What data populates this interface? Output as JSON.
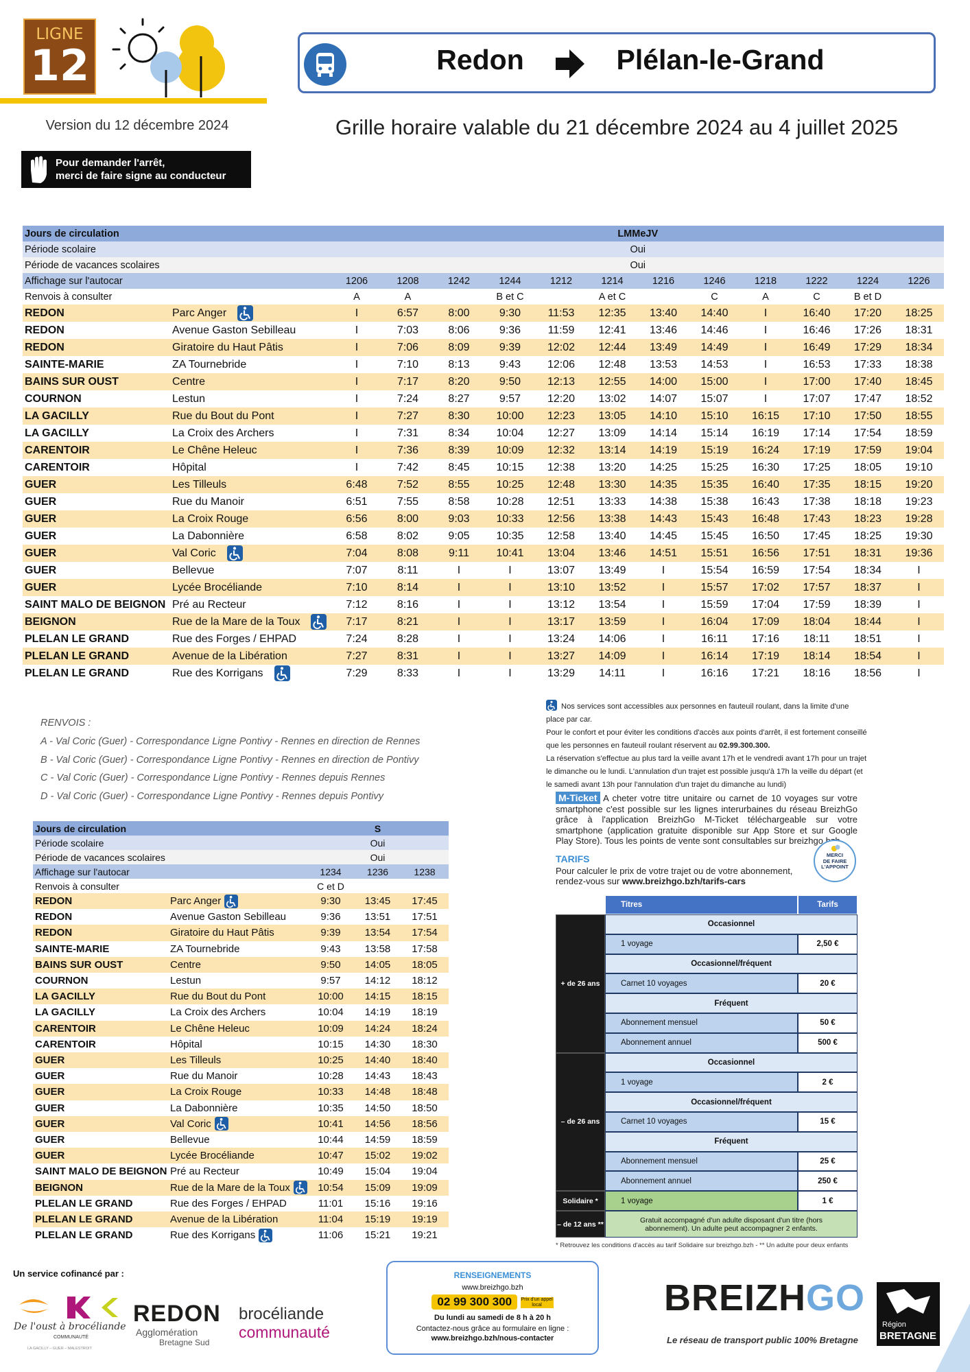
{
  "header": {
    "line_label": "LIGNE",
    "line_number": "12",
    "version": "Version du 12 décembre 2024",
    "stop_request_1": "Pour demander l'arrêt,",
    "stop_request_2": "merci de faire signe au conducteur",
    "origin": "Redon",
    "destination": "Plélan-le-Grand",
    "validity": "Grille horaire valable du 21 décembre 2024 au 4 juillet 2025"
  },
  "labels": {
    "days": "Jours de circulation",
    "school": "Période scolaire",
    "holidays": "Période de vacances scolaires",
    "display": "Affichage sur l'autocar",
    "notes": "Renvois à consulter"
  },
  "stops": [
    {
      "commune": "REDON",
      "name": "Parc Anger",
      "accessible": true
    },
    {
      "commune": "REDON",
      "name": "Avenue Gaston Sebilleau"
    },
    {
      "commune": "REDON",
      "name": "Giratoire du Haut Pâtis"
    },
    {
      "commune": "SAINTE-MARIE",
      "name": "ZA Tournebride"
    },
    {
      "commune": "BAINS SUR OUST",
      "name": "Centre"
    },
    {
      "commune": "COURNON",
      "name": "Lestun"
    },
    {
      "commune": "LA GACILLY",
      "name": "Rue du Bout du Pont"
    },
    {
      "commune": "LA GACILLY",
      "name": "La Croix des Archers"
    },
    {
      "commune": "CARENTOIR",
      "name": "Le Chêne Heleuc"
    },
    {
      "commune": "CARENTOIR",
      "name": "Hôpital"
    },
    {
      "commune": "GUER",
      "name": "Les Tilleuls"
    },
    {
      "commune": "GUER",
      "name": "Rue du Manoir"
    },
    {
      "commune": "GUER",
      "name": "La Croix Rouge"
    },
    {
      "commune": "GUER",
      "name": "La Dabonnière"
    },
    {
      "commune": "GUER",
      "name": "Val Coric",
      "accessible": true
    },
    {
      "commune": "GUER",
      "name": "Bellevue"
    },
    {
      "commune": "GUER",
      "name": "Lycée Brocéliande"
    },
    {
      "commune": "SAINT MALO DE BEIGNON",
      "name": "Pré au Recteur"
    },
    {
      "commune": "BEIGNON",
      "name": "Rue de la Mare de la Toux",
      "accessible": true
    },
    {
      "commune": "PLELAN LE GRAND",
      "name": "Rue des Forges / EHPAD"
    },
    {
      "commune": "PLELAN LE GRAND",
      "name": "Avenue de la Libération"
    },
    {
      "commune": "PLELAN LE GRAND",
      "name": "Rue des Korrigans",
      "accessible": true
    }
  ],
  "tables": [
    {
      "days": "LMMeJV",
      "school": "Oui",
      "holidays": "Oui",
      "trips": [
        "1206",
        "1208",
        "1242",
        "1244",
        "1212",
        "1214",
        "1216",
        "1246",
        "1218",
        "1222",
        "1224",
        "1226"
      ],
      "notes": [
        "A",
        "A",
        null,
        "B et C",
        null,
        "A et C",
        null,
        "C",
        "A",
        "C",
        "B et D",
        null
      ],
      "times": [
        [
          "I",
          "6:57",
          "8:00",
          "9:30",
          "11:53",
          "12:35",
          "13:40",
          "14:40",
          "I",
          "16:40",
          "17:20",
          "18:25"
        ],
        [
          "I",
          "7:03",
          "8:06",
          "9:36",
          "11:59",
          "12:41",
          "13:46",
          "14:46",
          "I",
          "16:46",
          "17:26",
          "18:31"
        ],
        [
          "I",
          "7:06",
          "8:09",
          "9:39",
          "12:02",
          "12:44",
          "13:49",
          "14:49",
          "I",
          "16:49",
          "17:29",
          "18:34"
        ],
        [
          "I",
          "7:10",
          "8:13",
          "9:43",
          "12:06",
          "12:48",
          "13:53",
          "14:53",
          "I",
          "16:53",
          "17:33",
          "18:38"
        ],
        [
          "I",
          "7:17",
          "8:20",
          "9:50",
          "12:13",
          "12:55",
          "14:00",
          "15:00",
          "I",
          "17:00",
          "17:40",
          "18:45"
        ],
        [
          "I",
          "7:24",
          "8:27",
          "9:57",
          "12:20",
          "13:02",
          "14:07",
          "15:07",
          "I",
          "17:07",
          "17:47",
          "18:52"
        ],
        [
          "I",
          "7:27",
          "8:30",
          "10:00",
          "12:23",
          "13:05",
          "14:10",
          "15:10",
          "16:15",
          "17:10",
          "17:50",
          "18:55"
        ],
        [
          "I",
          "7:31",
          "8:34",
          "10:04",
          "12:27",
          "13:09",
          "14:14",
          "15:14",
          "16:19",
          "17:14",
          "17:54",
          "18:59"
        ],
        [
          "I",
          "7:36",
          "8:39",
          "10:09",
          "12:32",
          "13:14",
          "14:19",
          "15:19",
          "16:24",
          "17:19",
          "17:59",
          "19:04"
        ],
        [
          "I",
          "7:42",
          "8:45",
          "10:15",
          "12:38",
          "13:20",
          "14:25",
          "15:25",
          "16:30",
          "17:25",
          "18:05",
          "19:10"
        ],
        [
          "6:48",
          "7:52",
          "8:55",
          "10:25",
          "12:48",
          "13:30",
          "14:35",
          "15:35",
          "16:40",
          "17:35",
          "18:15",
          "19:20"
        ],
        [
          "6:51",
          "7:55",
          "8:58",
          "10:28",
          "12:51",
          "13:33",
          "14:38",
          "15:38",
          "16:43",
          "17:38",
          "18:18",
          "19:23"
        ],
        [
          "6:56",
          "8:00",
          "9:03",
          "10:33",
          "12:56",
          "13:38",
          "14:43",
          "15:43",
          "16:48",
          "17:43",
          "18:23",
          "19:28"
        ],
        [
          "6:58",
          "8:02",
          "9:05",
          "10:35",
          "12:58",
          "13:40",
          "14:45",
          "15:45",
          "16:50",
          "17:45",
          "18:25",
          "19:30"
        ],
        [
          "7:04",
          "8:08",
          "9:11",
          "10:41",
          "13:04",
          "13:46",
          "14:51",
          "15:51",
          "16:56",
          "17:51",
          "18:31",
          "19:36"
        ],
        [
          "7:07",
          "8:11",
          "I",
          "I",
          "13:07",
          "13:49",
          "I",
          "15:54",
          "16:59",
          "17:54",
          "18:34",
          "I"
        ],
        [
          "7:10",
          "8:14",
          "I",
          "I",
          "13:10",
          "13:52",
          "I",
          "15:57",
          "17:02",
          "17:57",
          "18:37",
          "I"
        ],
        [
          "7:12",
          "8:16",
          "I",
          "I",
          "13:12",
          "13:54",
          "I",
          "15:59",
          "17:04",
          "17:59",
          "18:39",
          "I"
        ],
        [
          "7:17",
          "8:21",
          "I",
          "I",
          "13:17",
          "13:59",
          "I",
          "16:04",
          "17:09",
          "18:04",
          "18:44",
          "I"
        ],
        [
          "7:24",
          "8:28",
          "I",
          "I",
          "13:24",
          "14:06",
          "I",
          "16:11",
          "17:16",
          "18:11",
          "18:51",
          "I"
        ],
        [
          "7:27",
          "8:31",
          "I",
          "I",
          "13:27",
          "14:09",
          "I",
          "16:14",
          "17:19",
          "18:14",
          "18:54",
          "I"
        ],
        [
          "7:29",
          "8:33",
          "I",
          "I",
          "13:29",
          "14:11",
          "I",
          "16:16",
          "17:21",
          "18:16",
          "18:56",
          "I"
        ]
      ]
    },
    {
      "days": "S",
      "school": "Oui",
      "holidays": "Oui",
      "trips": [
        "1234",
        "1236",
        "1238"
      ],
      "notes": [
        "C et D",
        null,
        null
      ],
      "times": [
        [
          "9:30",
          "13:45",
          "17:45"
        ],
        [
          "9:36",
          "13:51",
          "17:51"
        ],
        [
          "9:39",
          "13:54",
          "17:54"
        ],
        [
          "9:43",
          "13:58",
          "17:58"
        ],
        [
          "9:50",
          "14:05",
          "18:05"
        ],
        [
          "9:57",
          "14:12",
          "18:12"
        ],
        [
          "10:00",
          "14:15",
          "18:15"
        ],
        [
          "10:04",
          "14:19",
          "18:19"
        ],
        [
          "10:09",
          "14:24",
          "18:24"
        ],
        [
          "10:15",
          "14:30",
          "18:30"
        ],
        [
          "10:25",
          "14:40",
          "18:40"
        ],
        [
          "10:28",
          "14:43",
          "18:43"
        ],
        [
          "10:33",
          "14:48",
          "18:48"
        ],
        [
          "10:35",
          "14:50",
          "18:50"
        ],
        [
          "10:41",
          "14:56",
          "18:56"
        ],
        [
          "10:44",
          "14:59",
          "18:59"
        ],
        [
          "10:47",
          "15:02",
          "19:02"
        ],
        [
          "10:49",
          "15:04",
          "19:04"
        ],
        [
          "10:54",
          "15:09",
          "19:09"
        ],
        [
          "11:01",
          "15:16",
          "19:16"
        ],
        [
          "11:04",
          "15:19",
          "19:19"
        ],
        [
          "11:06",
          "15:21",
          "19:21"
        ]
      ]
    }
  ],
  "renvois": {
    "title": "RENVOIS :",
    "items": [
      "A - Val Coric (Guer) - Correspondance Ligne Pontivy - Rennes en direction de Rennes",
      "B - Val Coric (Guer) - Correspondance Ligne Pontivy - Rennes en direction de Pontivy",
      "C - Val Coric (Guer) - Correspondance Ligne Pontivy - Rennes depuis Rennes",
      "D -  Val Coric (Guer) - Correspondance Ligne Pontivy - Rennes depuis Pontivy"
    ]
  },
  "accessibility": {
    "intro": "Nos services sont accessibles aux personnes en fauteuil roulant, dans la limite d'une place par car.",
    "advice": "Pour le confort et pour éviter les conditions d'accès aux points d'arrêt, il est  fortement conseillé que les personnes en fauteuil roulant réservent au",
    "phone": "02.99.300.300.",
    "booking": "La réservation s'effectue au plus tard la veille avant 17h et le vendredi avant 17h pour un trajet le dimanche ou le lundi. L'annulation d'un trajet est possible jusqu'à 17h la veille du départ (et le samedi avant 13h pour l'annulation d'un trajet du dimanche au lundi)"
  },
  "mticket": {
    "badge": "M-Ticket",
    "text": "A cheter votre titre unitaire ou carnet de 10 voyages sur votre smartphone c'est possible sur les lignes interurbaines du réseau BreizhGo grâce à l'application BreizhGo M-Ticket téléchargeable sur votre smartphone (application gratuite disponible sur App Store et sur Google Play Store). Tous les points de vente sont consultables sur breizhgo.bzh",
    "appoint": [
      "MERCI",
      "DE FAIRE",
      "L'APPOINT"
    ],
    "tarifs_title": "TARIFS",
    "tarifs_text": "Pour calculer le prix de votre trajet ou de votre abonnement, rendez-vous sur",
    "tarifs_url": "www.breizhgo.bzh/tarifs-cars"
  },
  "tariffs": {
    "headers": [
      "Titres",
      "Tarifs"
    ],
    "groups": [
      {
        "name": "+ de 26 ans",
        "sections": [
          {
            "title": "Occasionnel",
            "items": [
              {
                "label": "1 voyage",
                "price": "2,50 €"
              }
            ]
          },
          {
            "title": "Occasionnel/fréquent",
            "items": [
              {
                "label": "Carnet 10 voyages",
                "price": "20 €"
              }
            ]
          },
          {
            "title": "Fréquent",
            "items": [
              {
                "label": "Abonnement mensuel",
                "price": "50 €"
              },
              {
                "label": "Abonnement annuel",
                "price": "500 €"
              }
            ]
          }
        ]
      },
      {
        "name": "– de 26 ans",
        "sections": [
          {
            "title": "Occasionnel",
            "items": [
              {
                "label": "1 voyage",
                "price": "2 €"
              }
            ]
          },
          {
            "title": "Occasionnel/fréquent",
            "items": [
              {
                "label": "Carnet 10 voyages",
                "price": "15 €"
              }
            ]
          },
          {
            "title": "Fréquent",
            "items": [
              {
                "label": "Abonnement mensuel",
                "price": "25 €"
              },
              {
                "label": "Abonnement annuel",
                "price": "250 €"
              }
            ]
          }
        ]
      },
      {
        "name": "Solidaire *",
        "items": [
          {
            "label": "1 voyage",
            "price": "1 €"
          }
        ]
      }
    ],
    "free": {
      "name": "– de 12 ans **",
      "text": "Gratuit accompagné d'un adulte disposant d'un titre (hors abonnement). Un adulte peut accompagner 2 enfants."
    },
    "footnote": "* Retrouvez les conditions d'accès au tarif Solidaire sur breizhgo.bzh - ** Un adulte pour deux enfants"
  },
  "footer": {
    "cofunded": "Un service cofinancé par :",
    "oust_name": "De l'oust à brocéliande",
    "oust_sub": "COMMUNAUTÉ",
    "oust_towns": "LA GACILLY – GUER – MALESTROIT",
    "redon_name": "REDON",
    "redon_sub1": "Agglomération",
    "redon_sub2": "Bretagne Sud",
    "broc_name": "brocéliande",
    "broc_sub": "communauté",
    "info_title": "RENSEIGNEMENTS",
    "info_site": "www.breizhgo.bzh",
    "info_phone": "02 99 300 300",
    "info_price": "Prix d'un appel local",
    "info_hours": "Du lundi au samedi de 8 h à 20 h",
    "info_contact": "Contactez-nous grâce au formulaire en ligne :",
    "info_url": "www.breizhgo.bzh/nous-contacter",
    "brand": "BREIZH",
    "brand_accent": "GO",
    "brand_tagline": "Le réseau de transport public 100% Bretagne",
    "region_1": "Région",
    "region_2": "BRETAGNE"
  }
}
